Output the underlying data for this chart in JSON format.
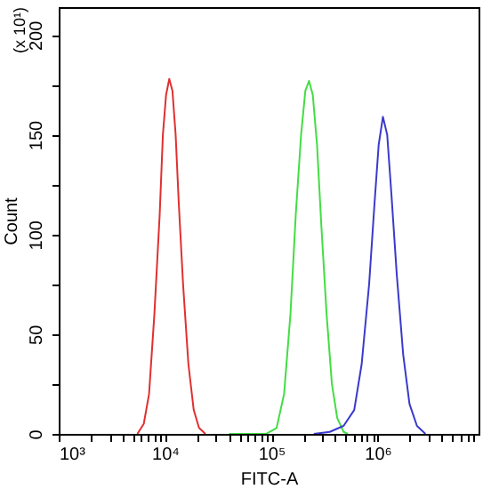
{
  "chart_data": {
    "type": "line",
    "xlabel": "FITC-A",
    "ylabel": "Count",
    "annotations": [
      "(x 10¹)"
    ],
    "log": "x",
    "xlim": [
      1000,
      8900000
    ],
    "ylim": [
      0,
      214
    ],
    "xticks": [
      {
        "value": 1000,
        "label": "10³"
      },
      {
        "value": 2000,
        "label": null
      },
      {
        "value": 3000,
        "label": null
      },
      {
        "value": 4000,
        "label": null
      },
      {
        "value": 5000,
        "label": null
      },
      {
        "value": 6000,
        "label": null
      },
      {
        "value": 7000,
        "label": null
      },
      {
        "value": 8000,
        "label": null
      },
      {
        "value": 9000,
        "label": null
      },
      {
        "value": 10000,
        "label": "10⁴"
      },
      {
        "value": 20000,
        "label": null
      },
      {
        "value": 30000,
        "label": null
      },
      {
        "value": 40000,
        "label": null
      },
      {
        "value": 50000,
        "label": null
      },
      {
        "value": 60000,
        "label": null
      },
      {
        "value": 70000,
        "label": null
      },
      {
        "value": 80000,
        "label": null
      },
      {
        "value": 90000,
        "label": null
      },
      {
        "value": 100000,
        "label": "10⁵"
      },
      {
        "value": 200000,
        "label": null
      },
      {
        "value": 300000,
        "label": null
      },
      {
        "value": 400000,
        "label": null
      },
      {
        "value": 500000,
        "label": null
      },
      {
        "value": 600000,
        "label": null
      },
      {
        "value": 700000,
        "label": null
      },
      {
        "value": 800000,
        "label": null
      },
      {
        "value": 900000,
        "label": null
      },
      {
        "value": 1000000,
        "label": "10⁶"
      },
      {
        "value": 2000000,
        "label": null
      },
      {
        "value": 3000000,
        "label": null
      },
      {
        "value": 4000000,
        "label": null
      },
      {
        "value": 5000000,
        "label": null
      },
      {
        "value": 6000000,
        "label": null
      },
      {
        "value": 7000000,
        "label": null
      },
      {
        "value": 8000000,
        "label": null
      }
    ],
    "yticks": [
      0,
      {
        "value": 25,
        "label": null
      },
      50,
      {
        "value": 75,
        "label": null
      },
      100,
      {
        "value": 125,
        "label": null
      },
      150,
      {
        "value": 175,
        "label": null
      },
      200
    ],
    "grid": false,
    "legend": false,
    "marker": "none",
    "line_style": "solid",
    "series": [
      {
        "color": "#e03030",
        "x": [
          5495,
          6310,
          7079,
          7943,
          8913,
          9550,
          10233,
          10965,
          11749,
          12589,
          13490,
          14791,
          16596,
          18621,
          20893,
          23988
        ],
        "values": [
          0,
          5,
          20,
          60,
          110,
          150,
          170,
          178,
          172,
          150,
          115,
          75,
          35,
          12,
          3,
          0
        ]
      },
      {
        "color": "#44dd44",
        "x": [
          40000,
          89125,
          112202,
          131826,
          151356,
          169824,
          190546,
          208930,
          226464,
          245471,
          269153,
          295121,
          331131,
          371535,
          416869,
          478630,
          524807
        ],
        "values": [
          0,
          0,
          3,
          20,
          60,
          110,
          150,
          172,
          177,
          170,
          145,
          105,
          60,
          25,
          8,
          1,
          0
        ]
      },
      {
        "color": "#3a3acc",
        "x": [
          251189,
          354813,
          478630,
          602560,
          707946,
          831764,
          933254,
          1023293,
          1122018,
          1230269,
          1348963,
          1513561,
          1737801,
          1995262,
          2344229,
          2818383
        ],
        "values": [
          0,
          1,
          4,
          12,
          35,
          75,
          115,
          145,
          159,
          150,
          120,
          80,
          40,
          15,
          4,
          0
        ]
      }
    ]
  }
}
